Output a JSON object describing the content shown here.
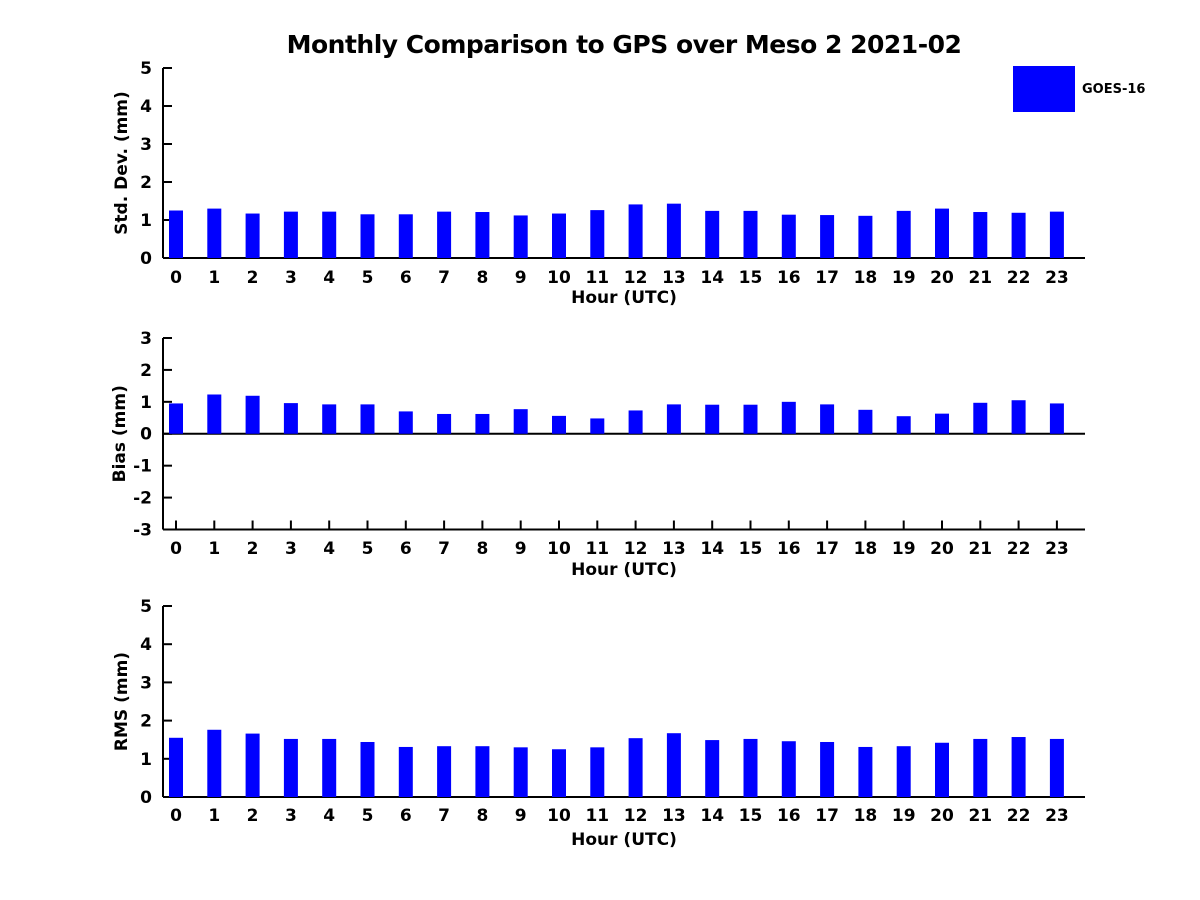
{
  "figure": {
    "title": "Monthly Comparison to GPS over Meso 2 2021-02",
    "background_color": "#ffffff",
    "axis_color": "#000000"
  },
  "legend": {
    "label": "GOES-16",
    "swatch_color": "#0000FF",
    "position": "upper-right-outside-plot"
  },
  "chart_data": [
    {
      "type": "bar",
      "panel": "std-dev",
      "series_name": "GOES-16",
      "bar_color": "#0000FF",
      "ylabel": "Std. Dev. (mm)",
      "xlabel": "Hour (UTC)",
      "categories": [
        "0",
        "1",
        "2",
        "3",
        "4",
        "5",
        "6",
        "7",
        "8",
        "9",
        "10",
        "11",
        "12",
        "13",
        "14",
        "15",
        "16",
        "17",
        "18",
        "19",
        "20",
        "21",
        "22",
        "23"
      ],
      "values": [
        1.25,
        1.3,
        1.17,
        1.22,
        1.22,
        1.15,
        1.15,
        1.22,
        1.21,
        1.12,
        1.17,
        1.26,
        1.41,
        1.43,
        1.24,
        1.24,
        1.14,
        1.13,
        1.11,
        1.24,
        1.3,
        1.21,
        1.19,
        1.22
      ],
      "ylim": [
        0,
        5
      ],
      "yticks": [
        0,
        1,
        2,
        3,
        4,
        5
      ],
      "grid": false
    },
    {
      "type": "bar",
      "panel": "bias",
      "series_name": "GOES-16",
      "bar_color": "#0000FF",
      "ylabel": "Bias (mm)",
      "xlabel": "Hour (UTC)",
      "categories": [
        "0",
        "1",
        "2",
        "3",
        "4",
        "5",
        "6",
        "7",
        "8",
        "9",
        "10",
        "11",
        "12",
        "13",
        "14",
        "15",
        "16",
        "17",
        "18",
        "19",
        "20",
        "21",
        "22",
        "23"
      ],
      "values": [
        0.95,
        1.23,
        1.19,
        0.96,
        0.92,
        0.92,
        0.7,
        0.62,
        0.62,
        0.77,
        0.56,
        0.48,
        0.73,
        0.92,
        0.91,
        0.91,
        1.0,
        0.92,
        0.75,
        0.55,
        0.63,
        0.97,
        1.05,
        0.95
      ],
      "ylim": [
        -3,
        3
      ],
      "yticks": [
        3,
        2,
        1,
        0,
        -1,
        -2,
        -3
      ],
      "grid": false
    },
    {
      "type": "bar",
      "panel": "rms",
      "series_name": "GOES-16",
      "bar_color": "#0000FF",
      "ylabel": "RMS (mm)",
      "xlabel": "Hour (UTC)",
      "categories": [
        "0",
        "1",
        "2",
        "3",
        "4",
        "5",
        "6",
        "7",
        "8",
        "9",
        "10",
        "11",
        "12",
        "13",
        "14",
        "15",
        "16",
        "17",
        "18",
        "19",
        "20",
        "21",
        "22",
        "23"
      ],
      "values": [
        1.55,
        1.76,
        1.66,
        1.52,
        1.52,
        1.44,
        1.31,
        1.33,
        1.33,
        1.3,
        1.25,
        1.3,
        1.54,
        1.67,
        1.49,
        1.52,
        1.46,
        1.44,
        1.31,
        1.33,
        1.42,
        1.52,
        1.57,
        1.52
      ],
      "ylim": [
        0,
        5
      ],
      "yticks": [
        0,
        1,
        2,
        3,
        4,
        5
      ],
      "grid": false
    }
  ]
}
